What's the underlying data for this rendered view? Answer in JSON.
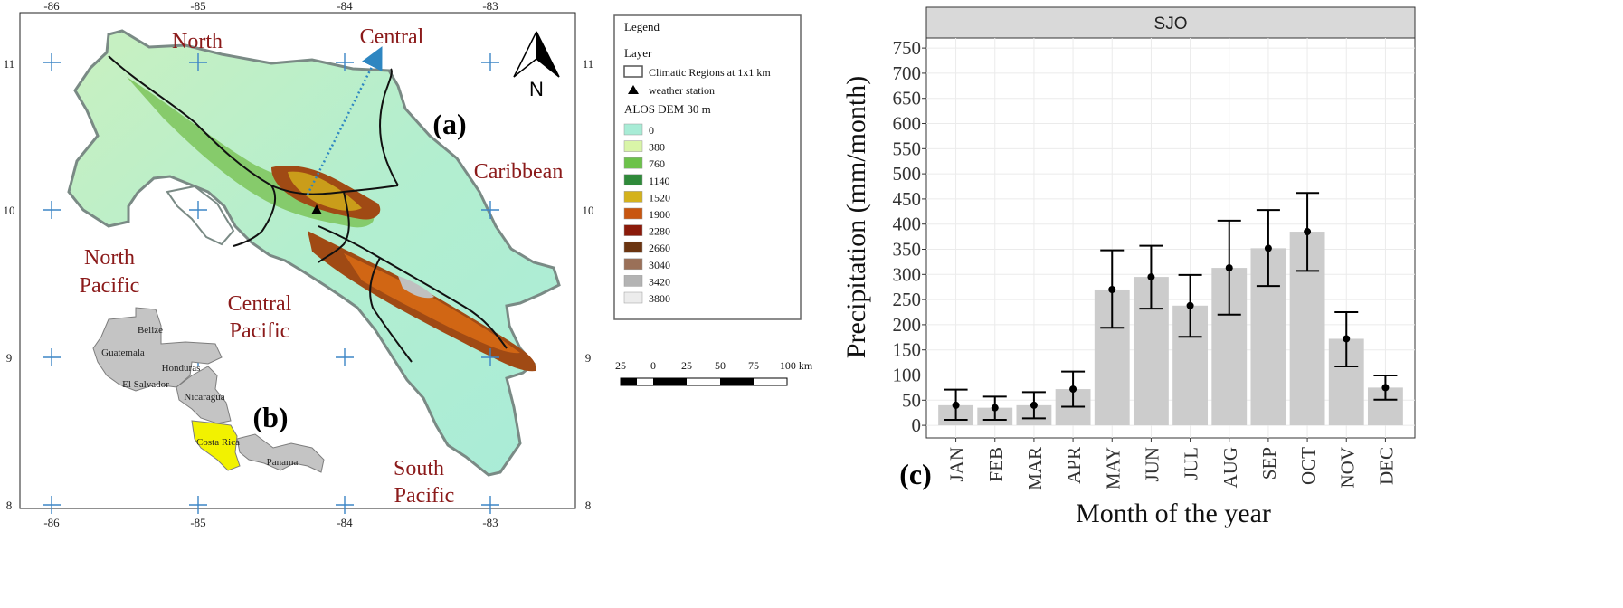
{
  "map": {
    "lon_labels": [
      "-86",
      "-85",
      "-84",
      "-83"
    ],
    "lat_labels": [
      "11",
      "10",
      "9",
      "8"
    ],
    "regions": {
      "north": "North",
      "central": "Central",
      "caribbean": "Caribbean",
      "north_pacific_1": "North",
      "north_pacific_2": "Pacific",
      "central_pacific_1": "Central",
      "central_pacific_2": "Pacific",
      "south_pacific_1": "South",
      "south_pacific_2": "Pacific"
    },
    "panel_a": "(a)",
    "panel_b": "(b)",
    "north_arrow": "N",
    "inset_countries": [
      "Belize",
      "Guatemala",
      "Honduras",
      "El Salvador",
      "Nicaragua",
      "Costa Rica",
      "Panama"
    ],
    "colors": {
      "ocean": "#ffffff",
      "highlight_country": "#f2f200",
      "other_countries": "#c2c2c2",
      "region_label": "#8b1a1a",
      "direction_arrow": "#2e86c1",
      "grid_cross": "#3d85c6"
    }
  },
  "legend": {
    "title": "Legend",
    "layer_title": "Layer",
    "climatic_regions": "Climatic Regions at 1x1 km",
    "weather_station": "weather station",
    "dem_title": "ALOS DEM 30 m",
    "dem_classes": [
      {
        "label": "0",
        "color": "#a8ecd6"
      },
      {
        "label": "380",
        "color": "#d9f5a8"
      },
      {
        "label": "760",
        "color": "#6cc24a"
      },
      {
        "label": "1140",
        "color": "#2f8a3a"
      },
      {
        "label": "1520",
        "color": "#d4b21c"
      },
      {
        "label": "1900",
        "color": "#c8550f"
      },
      {
        "label": "2280",
        "color": "#8b1a0a"
      },
      {
        "label": "2660",
        "color": "#6b3410"
      },
      {
        "label": "3040",
        "color": "#9a7058"
      },
      {
        "label": "3420",
        "color": "#b3b3b3"
      },
      {
        "label": "3800",
        "color": "#ececec"
      }
    ]
  },
  "scalebar": {
    "labels": [
      "25",
      "0",
      "25",
      "50",
      "75",
      "100 km"
    ]
  },
  "chart_data": {
    "type": "bar",
    "facet_title": "SJO",
    "panel_label": "(c)",
    "xlabel": "Month of the year",
    "ylabel": "Precipitation (mm/month)",
    "ylim": [
      0,
      750
    ],
    "yticks": [
      0,
      50,
      100,
      150,
      200,
      250,
      300,
      350,
      400,
      450,
      500,
      550,
      600,
      650,
      700,
      750
    ],
    "categories": [
      "JAN",
      "FEB",
      "MAR",
      "APR",
      "MAY",
      "JUN",
      "JUL",
      "AUG",
      "SEP",
      "OCT",
      "NOV",
      "DEC"
    ],
    "values": [
      40,
      35,
      40,
      72,
      270,
      295,
      238,
      313,
      352,
      385,
      172,
      75
    ],
    "error_low": [
      11,
      11,
      14,
      37,
      194,
      232,
      176,
      220,
      277,
      307,
      117,
      51
    ],
    "error_high": [
      71,
      57,
      66,
      107,
      348,
      357,
      299,
      407,
      428,
      462,
      225,
      99
    ],
    "bar_color": "#cccccc",
    "panel_background": "#ffffff",
    "grid": true,
    "legend": "none"
  }
}
